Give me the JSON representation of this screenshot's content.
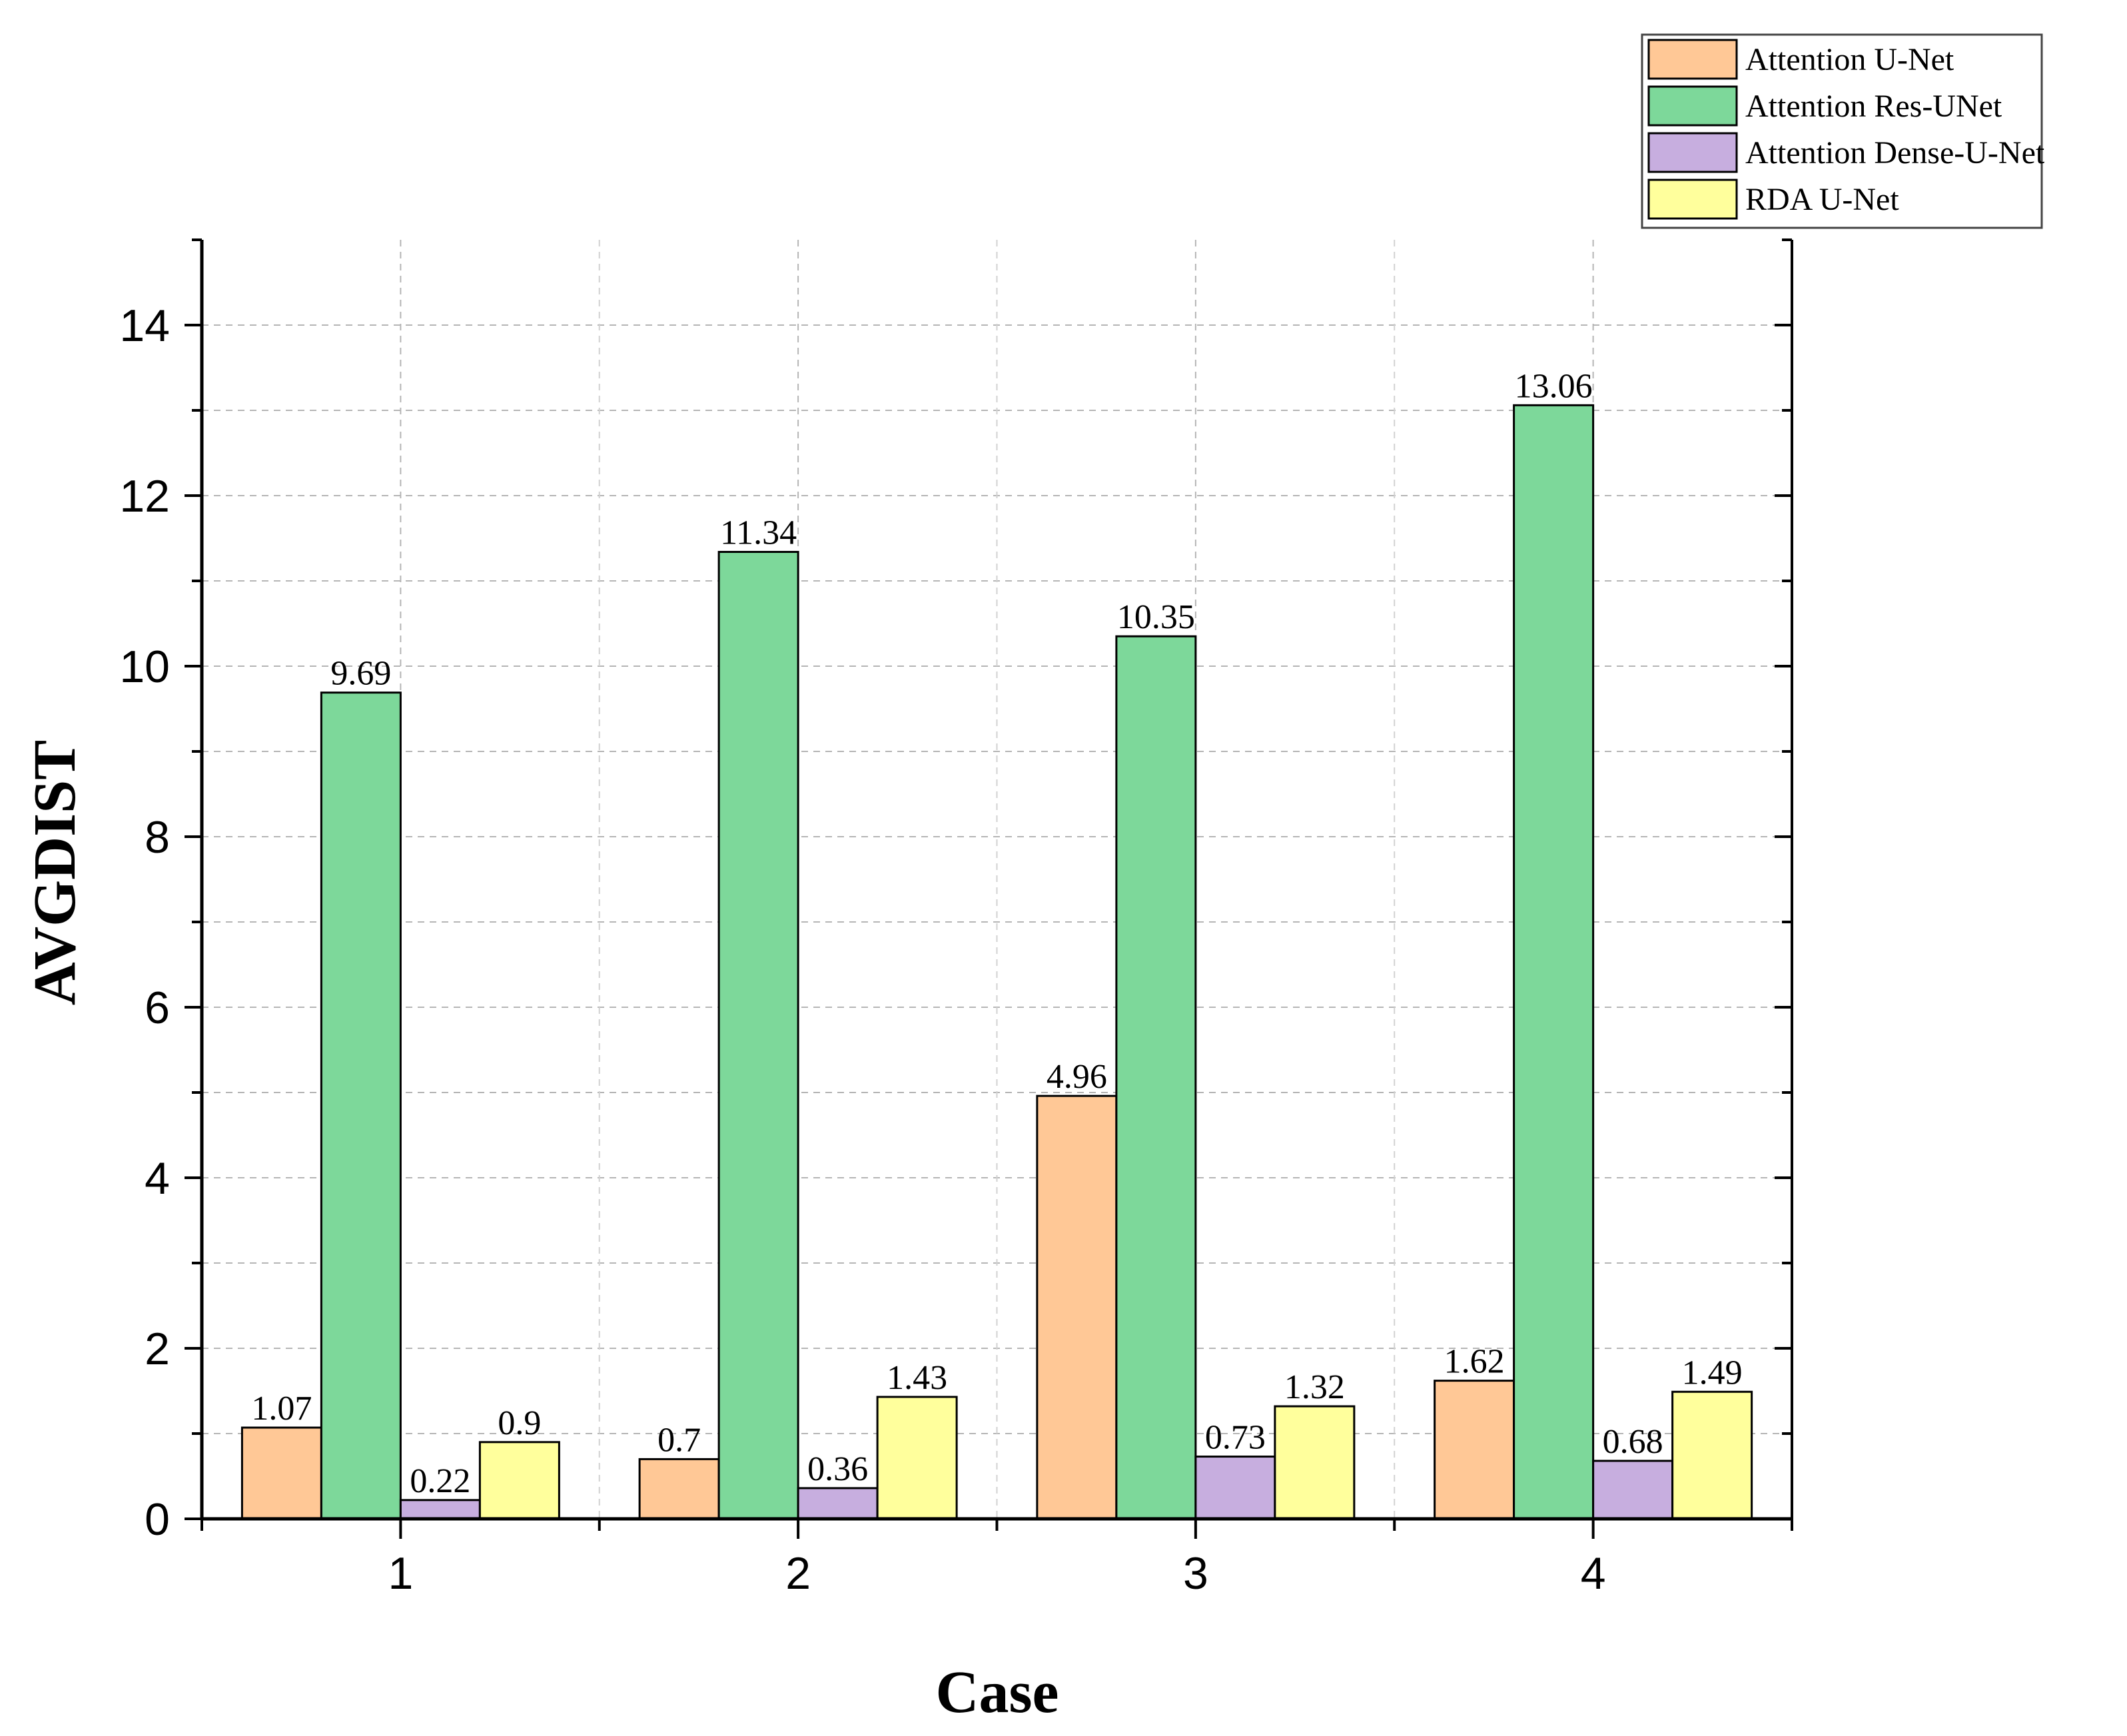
{
  "chart_data": {
    "type": "bar",
    "title": "",
    "xlabel": "Case",
    "ylabel": "AVGDIST",
    "categories": [
      "1",
      "2",
      "3",
      "4"
    ],
    "ylim": [
      0,
      15
    ],
    "yticks": [
      0,
      2,
      4,
      6,
      8,
      10,
      12,
      14
    ],
    "grid": true,
    "legend_position": "top-right",
    "series": [
      {
        "name": "Attention U-Net",
        "color": "#FFC896",
        "values": [
          1.07,
          0.7,
          4.96,
          1.62
        ],
        "labels": [
          "1.07",
          "0.7",
          "4.96",
          "1.62"
        ]
      },
      {
        "name": "Attention Res-UNet",
        "color": "#7DD89A",
        "values": [
          9.69,
          11.34,
          10.35,
          13.06
        ],
        "labels": [
          "9.69",
          "11.34",
          "10.35",
          "13.06"
        ]
      },
      {
        "name": "Attention Dense-U-Net",
        "color": "#C7AEDF",
        "values": [
          0.22,
          0.36,
          0.73,
          0.68
        ],
        "labels": [
          "0.22",
          "0.36",
          "0.73",
          "0.68"
        ]
      },
      {
        "name": "RDA U-Net",
        "color": "#FFFF9C",
        "values": [
          0.9,
          1.43,
          1.32,
          1.49
        ],
        "labels": [
          "0.9",
          "1.43",
          "1.32",
          "1.49"
        ]
      }
    ]
  }
}
